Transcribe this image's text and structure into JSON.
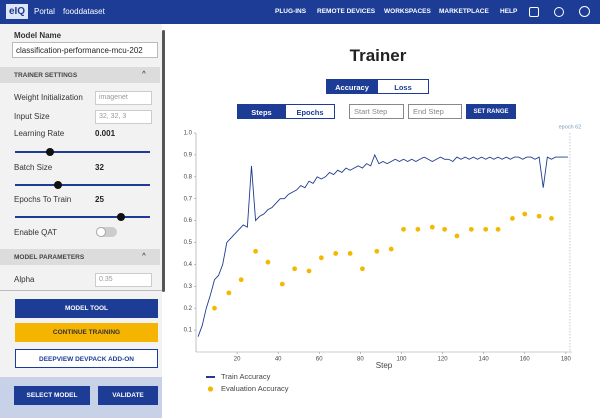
{
  "nav": {
    "logo": "eIQ",
    "portal": "Portal",
    "project": "fooddataset",
    "links": [
      "PLUG-INS",
      "REMOTE DEVICES",
      "WORKSPACES",
      "MARKETPLACE",
      "HELP"
    ]
  },
  "sidebar": {
    "model_name_label": "Model Name",
    "model_name": "classification-performance-mcu-202",
    "trainer_settings": "TRAINER SETTINGS",
    "weight_init_label": "Weight Initialization",
    "weight_init": "imagenet",
    "input_size_label": "Input Size",
    "input_size": "32, 32, 3",
    "learning_rate_label": "Learning Rate",
    "learning_rate": "0.001",
    "batch_size_label": "Batch Size",
    "batch_size": "32",
    "epochs_label": "Epochs To Train",
    "epochs": "25",
    "qat_label": "Enable QAT",
    "model_parameters": "MODEL PARAMETERS",
    "alpha_label": "Alpha",
    "alpha": "0.35",
    "buttons": [
      "MODEL TOOL",
      "CONTINUE TRAINING",
      "DEEPVIEW DEVPACK ADD-ON"
    ],
    "footer_buttons": [
      "SELECT MODEL",
      "VALIDATE"
    ]
  },
  "main": {
    "title": "Trainer",
    "metric_tabs": [
      "Accuracy",
      "Loss"
    ],
    "view_tabs": [
      "Steps",
      "Epochs"
    ],
    "start_step": "Start Step",
    "end_step": "End Step",
    "set_range": "SET RANGE"
  },
  "chart_data": {
    "type": "line",
    "xlabel": "Step",
    "xlim": [
      0,
      183
    ],
    "ylim": [
      0,
      1
    ],
    "xticks": [
      20,
      40,
      60,
      80,
      100,
      120,
      140,
      160,
      180
    ],
    "yticks": [
      0.1,
      0.2,
      0.3,
      0.4,
      0.5,
      0.6,
      0.7,
      0.8,
      0.9,
      {
        "value": 1,
        "label": "1.0"
      }
    ],
    "grid": false,
    "legend": "bottom-left",
    "annotation": {
      "x": 182,
      "text": "epoch 62"
    },
    "series": [
      {
        "name": "Train Accuracy",
        "color": "#1f3d8f",
        "mode": "lines",
        "x": [
          1,
          3,
          5,
          7,
          9,
          11,
          13,
          15,
          17,
          19,
          21,
          23,
          25,
          27,
          29,
          31,
          33,
          35,
          37,
          39,
          41,
          43,
          45,
          47,
          49,
          51,
          53,
          55,
          57,
          59,
          61,
          63,
          65,
          67,
          69,
          71,
          73,
          75,
          77,
          79,
          81,
          83,
          85,
          87,
          89,
          91,
          93,
          95,
          97,
          99,
          101,
          103,
          105,
          107,
          109,
          111,
          113,
          115,
          117,
          119,
          121,
          123,
          125,
          127,
          129,
          131,
          133,
          135,
          137,
          139,
          141,
          143,
          145,
          147,
          149,
          151,
          153,
          155,
          157,
          159,
          161,
          163,
          165,
          167,
          169,
          171,
          173,
          175,
          177,
          179,
          181
        ],
        "values": [
          0.07,
          0.12,
          0.2,
          0.26,
          0.33,
          0.35,
          0.4,
          0.5,
          0.52,
          0.54,
          0.56,
          0.58,
          0.57,
          0.85,
          0.6,
          0.62,
          0.63,
          0.65,
          0.66,
          0.68,
          0.7,
          0.7,
          0.72,
          0.73,
          0.74,
          0.76,
          0.75,
          0.78,
          0.77,
          0.8,
          0.79,
          0.8,
          0.82,
          0.81,
          0.83,
          0.82,
          0.84,
          0.83,
          0.84,
          0.85,
          0.84,
          0.86,
          0.85,
          0.9,
          0.86,
          0.87,
          0.86,
          0.87,
          0.88,
          0.87,
          0.88,
          0.87,
          0.88,
          0.87,
          0.88,
          0.89,
          0.88,
          0.87,
          0.88,
          0.89,
          0.88,
          0.88,
          0.87,
          0.89,
          0.88,
          0.89,
          0.88,
          0.89,
          0.88,
          0.89,
          0.88,
          0.89,
          0.88,
          0.89,
          0.88,
          0.89,
          0.88,
          0.89,
          0.89,
          0.88,
          0.89,
          0.89,
          0.88,
          0.89,
          0.75,
          0.89,
          0.88,
          0.89,
          0.89,
          0.89,
          0.89
        ]
      },
      {
        "name": "Evaluation Accuracy",
        "color": "#f5b800",
        "mode": "markers",
        "x": [
          9,
          16,
          22,
          29,
          35,
          42,
          48,
          55,
          61,
          68,
          75,
          81,
          88,
          95,
          101,
          108,
          115,
          121,
          127,
          134,
          141,
          147,
          154,
          160,
          167,
          173
        ],
        "values": [
          0.2,
          0.27,
          0.33,
          0.46,
          0.41,
          0.31,
          0.38,
          0.37,
          0.43,
          0.45,
          0.45,
          0.38,
          0.46,
          0.47,
          0.56,
          0.56,
          0.57,
          0.56,
          0.53,
          0.56,
          0.56,
          0.56,
          0.61,
          0.63,
          0.62,
          0.61
        ]
      }
    ]
  }
}
